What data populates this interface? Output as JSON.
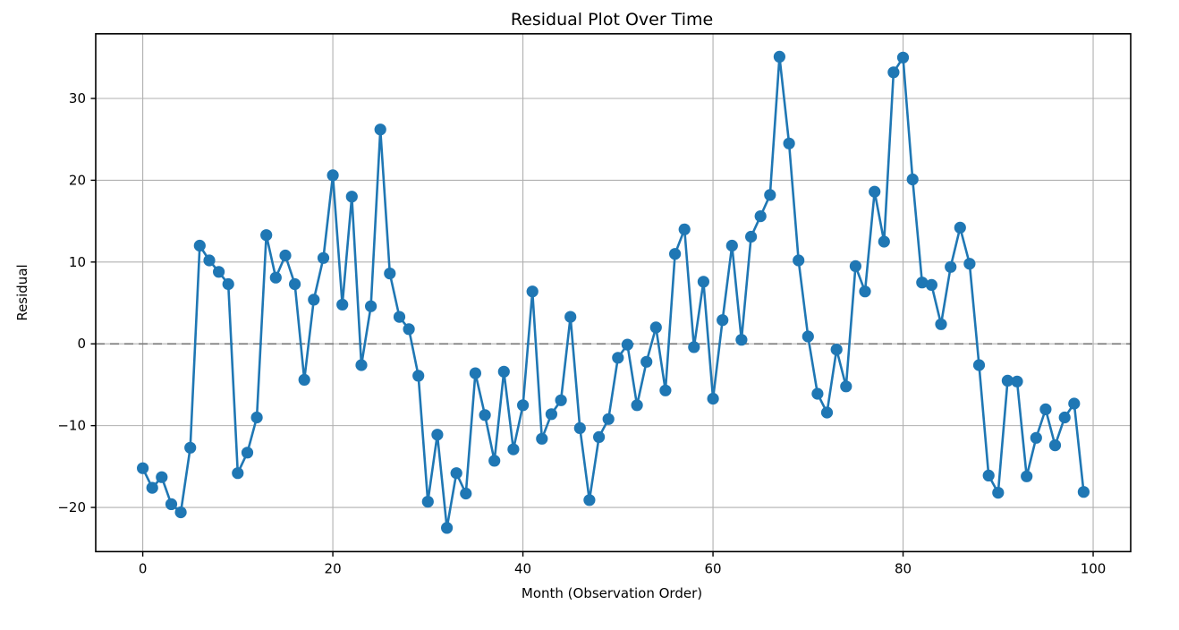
{
  "figure": {
    "background": "#ffffff"
  },
  "chart_data": {
    "type": "line",
    "title": "Residual Plot Over Time",
    "xlabel": "Month (Observation Order)",
    "ylabel": "Residual",
    "legend": "none",
    "grid": true,
    "grid_color": "#b0b0b0",
    "line_color": "#1f77b4",
    "marker": "circle",
    "marker_color": "#1f77b4",
    "spine_color": "#000000",
    "reference_line": {
      "y": 0,
      "style": "dashed",
      "color": "#7f7f7f"
    },
    "xlim": [
      -4.95,
      103.95
    ],
    "ylim": [
      -25.4,
      37.9
    ],
    "xticks": [
      0,
      20,
      40,
      60,
      80,
      100
    ],
    "yticks": [
      -20,
      -10,
      0,
      10,
      20,
      30
    ],
    "x": [
      0,
      1,
      2,
      3,
      4,
      5,
      6,
      7,
      8,
      9,
      10,
      11,
      12,
      13,
      14,
      15,
      16,
      17,
      18,
      19,
      20,
      21,
      22,
      23,
      24,
      25,
      26,
      27,
      28,
      29,
      30,
      31,
      32,
      33,
      34,
      35,
      36,
      37,
      38,
      39,
      40,
      41,
      42,
      43,
      44,
      45,
      46,
      47,
      48,
      49,
      50,
      51,
      52,
      53,
      54,
      55,
      56,
      57,
      58,
      59,
      60,
      61,
      62,
      63,
      64,
      65,
      66,
      67,
      68,
      69,
      70,
      71,
      72,
      73,
      74,
      75,
      76,
      77,
      78,
      79,
      80,
      81,
      82,
      83,
      84,
      85,
      86,
      87,
      88,
      89,
      90,
      91,
      92,
      93,
      94,
      95,
      96,
      97,
      98,
      99
    ],
    "series": [
      {
        "name": "residuals",
        "values": [
          -15.2,
          -17.6,
          -16.3,
          -19.6,
          -20.6,
          -12.7,
          12.0,
          10.2,
          8.8,
          7.3,
          -15.8,
          -13.3,
          -9.0,
          13.3,
          8.1,
          10.8,
          7.3,
          -4.4,
          5.4,
          10.5,
          20.6,
          4.8,
          18.0,
          -2.6,
          4.6,
          26.2,
          8.6,
          3.3,
          1.8,
          -3.9,
          -19.3,
          -11.1,
          -22.5,
          -15.8,
          -18.3,
          -3.6,
          -8.7,
          -14.3,
          -3.4,
          -12.9,
          -7.5,
          6.4,
          -11.6,
          -8.6,
          -6.9,
          3.3,
          -10.3,
          -19.1,
          -11.4,
          -9.2,
          -1.7,
          -0.1,
          -7.5,
          -2.2,
          2.0,
          -5.7,
          11.0,
          14.0,
          -0.4,
          7.6,
          -6.7,
          2.9,
          12.0,
          0.5,
          13.1,
          15.6,
          18.2,
          35.1,
          24.5,
          10.2,
          0.9,
          -6.1,
          -8.4,
          -0.7,
          -5.2,
          9.5,
          6.4,
          18.6,
          12.5,
          33.2,
          35.0,
          20.1,
          7.5,
          7.2,
          2.4,
          9.4,
          14.2,
          9.8,
          -2.6,
          -16.1,
          -18.2,
          -4.5,
          -4.6,
          -16.2,
          -11.5,
          -8.0,
          -12.4,
          -9.0,
          -7.3,
          -18.1
        ]
      }
    ]
  }
}
